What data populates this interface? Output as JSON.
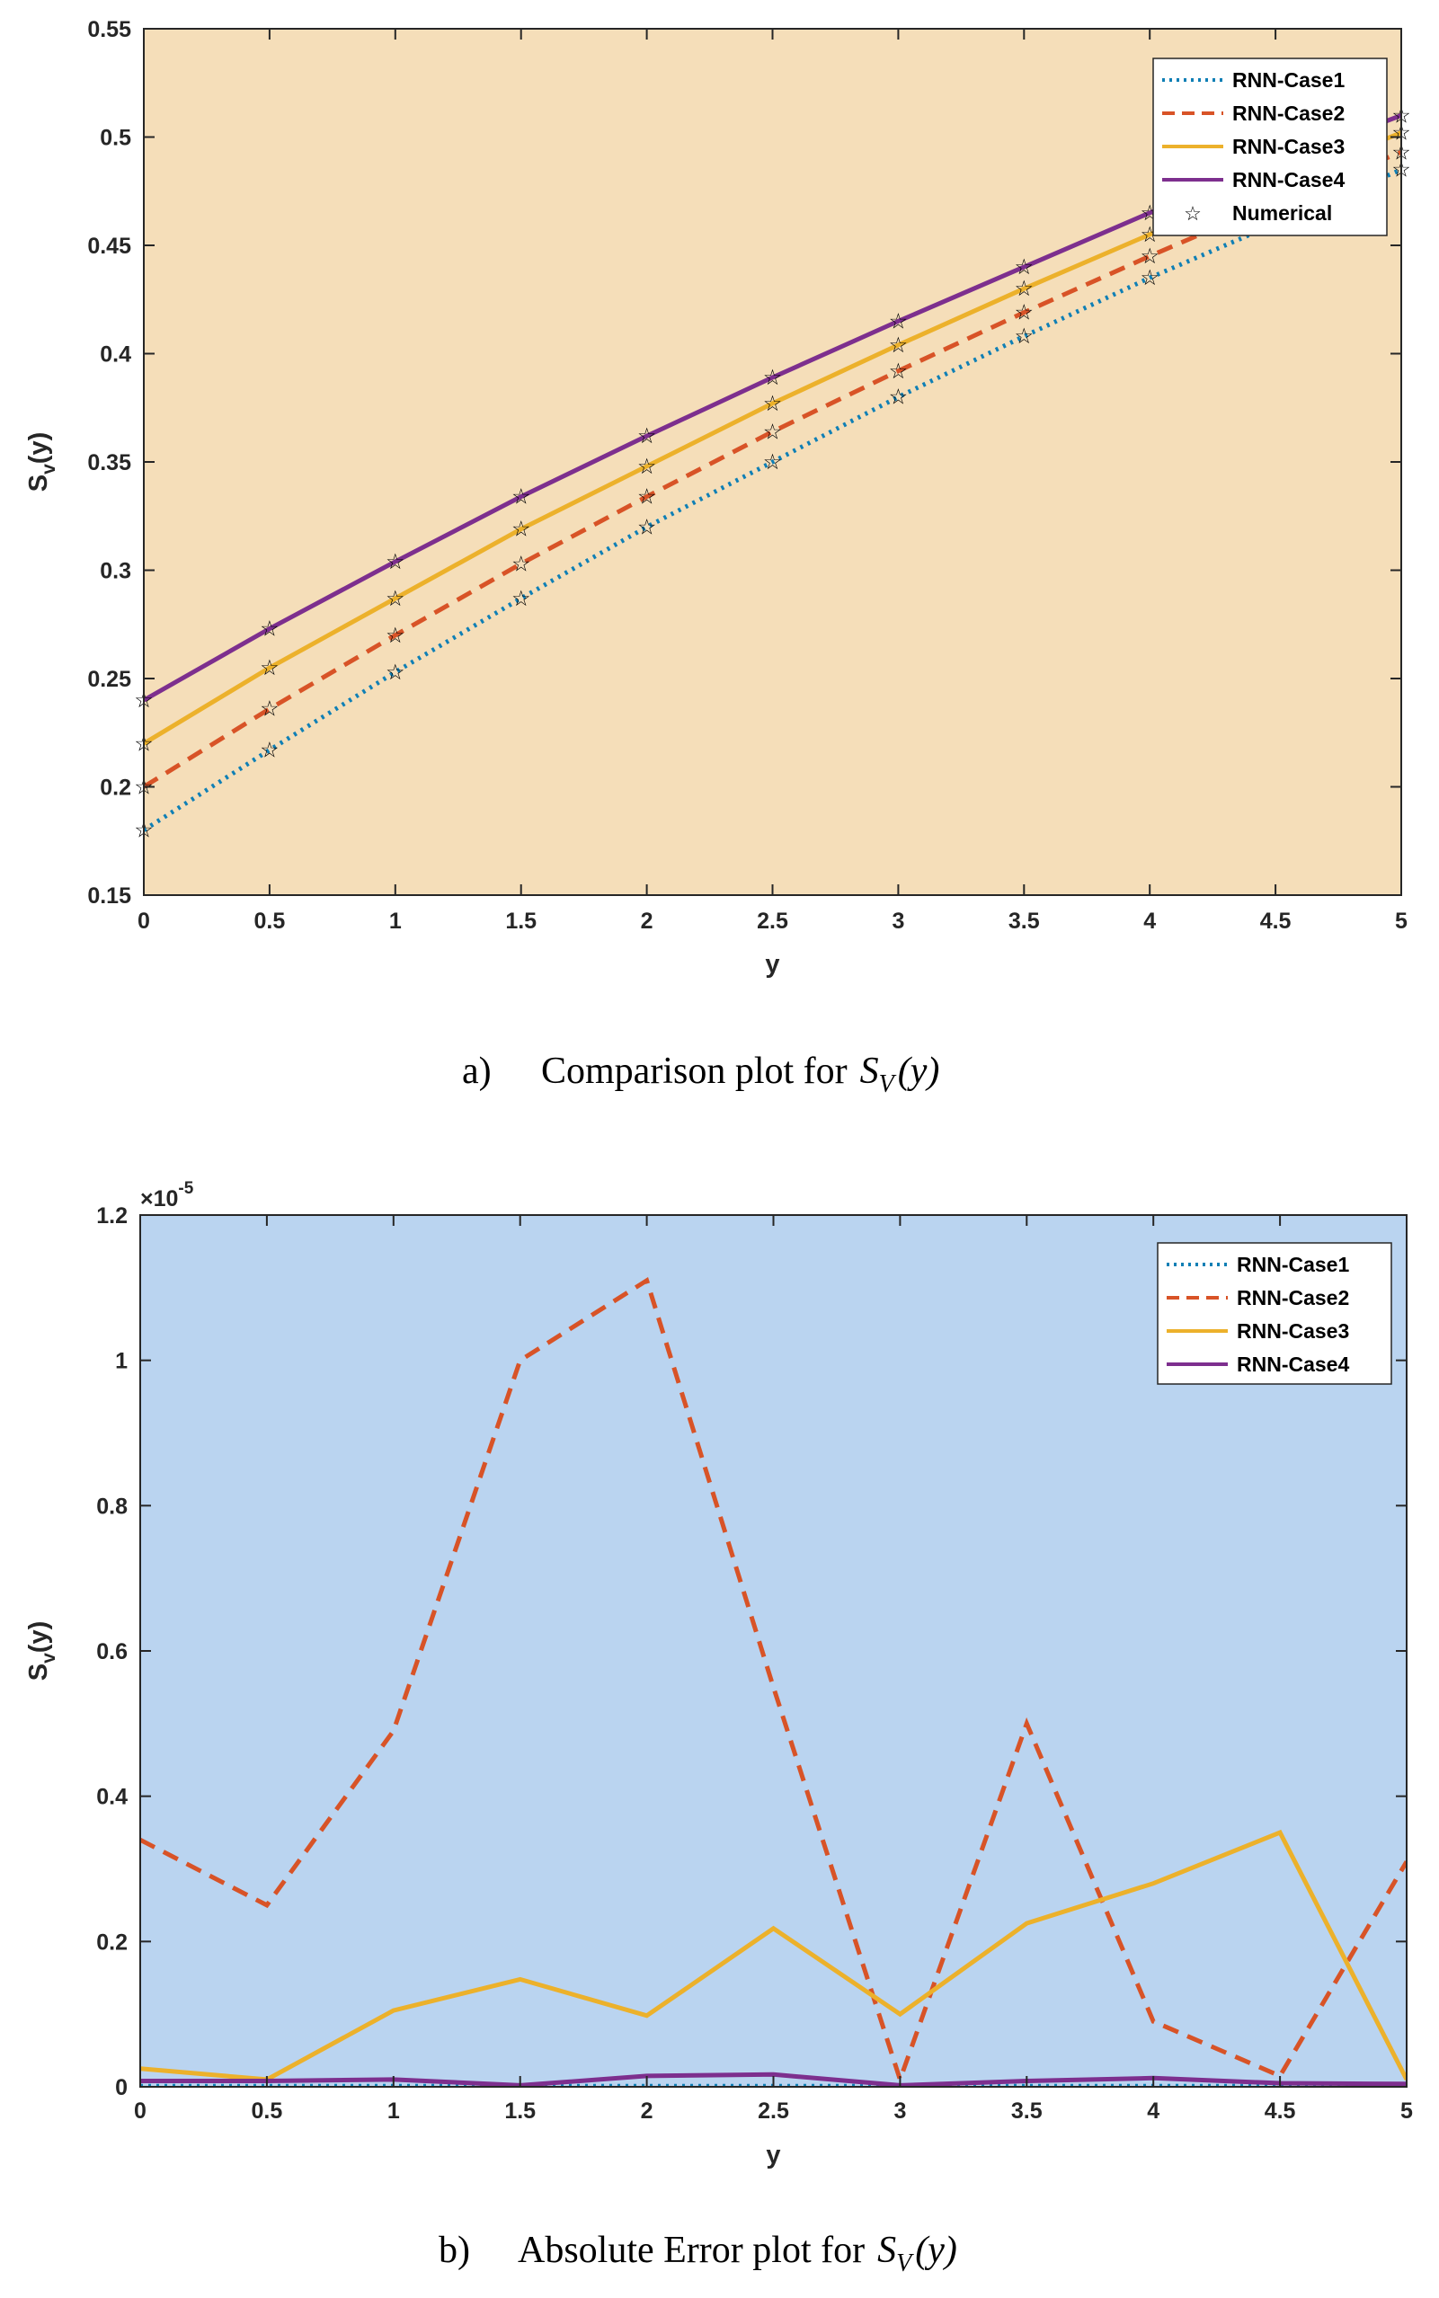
{
  "chart_data": [
    {
      "type": "line",
      "bg_color": "#f5deb9",
      "x": [
        0,
        0.5,
        1,
        1.5,
        2,
        2.5,
        3,
        3.5,
        4,
        4.5,
        5
      ],
      "xlabel": "y",
      "ylabel_main": "S",
      "ylabel_sub": "v",
      "ylabel_tail": "(y)",
      "xlim": [
        0,
        5
      ],
      "ylim": [
        0.15,
        0.55
      ],
      "xticks": [
        0,
        0.5,
        1,
        1.5,
        2,
        2.5,
        3,
        3.5,
        4,
        4.5,
        5
      ],
      "xtick_labels": [
        "0",
        "0.5",
        "1",
        "1.5",
        "2",
        "2.5",
        "3",
        "3.5",
        "4",
        "4.5",
        "5"
      ],
      "yticks": [
        0.15,
        0.2,
        0.25,
        0.3,
        0.35,
        0.4,
        0.45,
        0.5,
        0.55
      ],
      "ytick_labels": [
        "0.15",
        "0.2",
        "0.25",
        "0.3",
        "0.35",
        "0.4",
        "0.45",
        "0.5",
        "0.55"
      ],
      "grid": false,
      "legend_position": "top-right",
      "series": [
        {
          "name": "RNN-Case1",
          "color": "#0f7fb5",
          "style": "dotted",
          "values": [
            0.18,
            0.217,
            0.253,
            0.287,
            0.32,
            0.35,
            0.38,
            0.408,
            0.435,
            0.46,
            0.485
          ]
        },
        {
          "name": "RNN-Case2",
          "color": "#d85327",
          "style": "dashed",
          "values": [
            0.2,
            0.236,
            0.27,
            0.303,
            0.334,
            0.364,
            0.392,
            0.419,
            0.445,
            0.47,
            0.493
          ]
        },
        {
          "name": "RNN-Case3",
          "color": "#ecb12b",
          "style": "solid",
          "values": [
            0.22,
            0.255,
            0.287,
            0.319,
            0.348,
            0.377,
            0.404,
            0.43,
            0.455,
            0.479,
            0.502
          ]
        },
        {
          "name": "RNN-Case4",
          "color": "#7d2f8e",
          "style": "solid",
          "values": [
            0.24,
            0.273,
            0.304,
            0.334,
            0.362,
            0.389,
            0.415,
            0.44,
            0.465,
            0.488,
            0.51
          ]
        }
      ],
      "markers": {
        "name": "Numerical",
        "symbol": "☆",
        "color": "#000000"
      },
      "caption": {
        "label": "a)",
        "text": "Comparison plot for",
        "math_main": "S",
        "math_sub": "V",
        "math_arg": "(y)"
      }
    },
    {
      "type": "line",
      "bg_color": "#bad4f0",
      "x": [
        0,
        0.5,
        1,
        1.5,
        2,
        2.5,
        3,
        3.5,
        4,
        4.5,
        5
      ],
      "xlabel": "y",
      "ylabel_main": "S",
      "ylabel_sub": "v",
      "ylabel_tail": "(y)",
      "xlim": [
        0,
        5
      ],
      "ylim": [
        0,
        1.2
      ],
      "exponent_base": "×10",
      "exponent_power": "-5",
      "xticks": [
        0,
        0.5,
        1,
        1.5,
        2,
        2.5,
        3,
        3.5,
        4,
        4.5,
        5
      ],
      "xtick_labels": [
        "0",
        "0.5",
        "1",
        "1.5",
        "2",
        "2.5",
        "3",
        "3.5",
        "4",
        "4.5",
        "5"
      ],
      "yticks": [
        0,
        0.2,
        0.4,
        0.6,
        0.8,
        1,
        1.2
      ],
      "ytick_labels": [
        "0",
        "0.2",
        "0.4",
        "0.6",
        "0.8",
        "1",
        "1.2"
      ],
      "grid": false,
      "legend_position": "top-right",
      "series": [
        {
          "name": "RNN-Case1",
          "color": "#0f7fb5",
          "style": "dotted",
          "values": [
            0.001,
            0.001,
            0.001,
            0.001,
            0.001,
            0.001,
            0.001,
            0.001,
            0.001,
            0.001,
            0.001
          ]
        },
        {
          "name": "RNN-Case2",
          "color": "#d85327",
          "style": "dashed",
          "values": [
            0.34,
            0.25,
            0.49,
            1.0,
            1.11,
            0.55,
            0.01,
            0.5,
            0.09,
            0.015,
            0.31
          ]
        },
        {
          "name": "RNN-Case3",
          "color": "#ecb12b",
          "style": "solid",
          "values": [
            0.025,
            0.01,
            0.105,
            0.148,
            0.098,
            0.218,
            0.1,
            0.225,
            0.28,
            0.35,
            0.01
          ]
        },
        {
          "name": "RNN-Case4",
          "color": "#7d2f8e",
          "style": "solid",
          "values": [
            0.008,
            0.008,
            0.01,
            0.002,
            0.015,
            0.017,
            0.002,
            0.008,
            0.012,
            0.005,
            0.004
          ]
        }
      ],
      "caption": {
        "label": "b)",
        "text": "Absolute Error plot for",
        "math_main": "S",
        "math_sub": "V",
        "math_arg": "(y)"
      }
    }
  ]
}
